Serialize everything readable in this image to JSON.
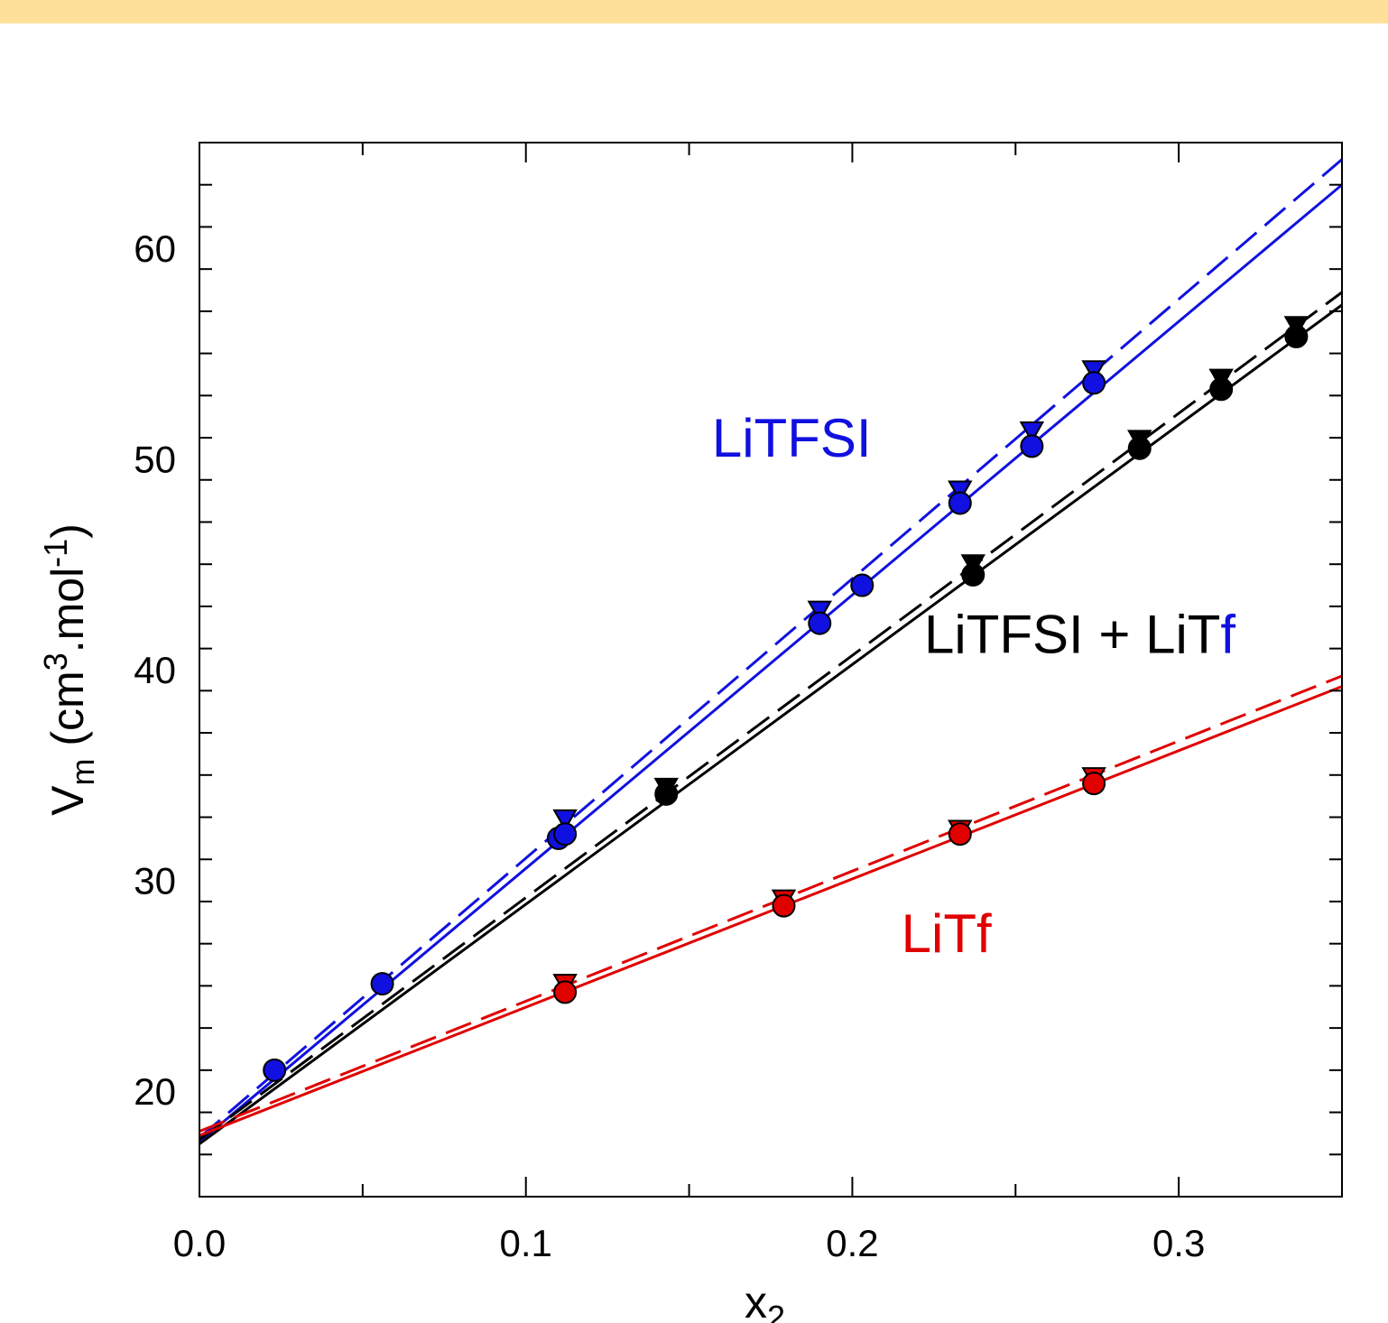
{
  "chart_data": {
    "type": "scatter",
    "xlabel": "x",
    "xlabel_sub": "2",
    "ylabel": "V",
    "ylabel_sub": "m",
    "ylabel_rest": " (cm",
    "ylabel_sup1": "3",
    "ylabel_mid": ".mol",
    "ylabel_sup2": "-1",
    "ylabel_end": ")",
    "xlim": [
      0.0,
      0.35
    ],
    "ylim": [
      15,
      65
    ],
    "x_ticks": [
      0.0,
      0.1,
      0.2,
      0.3
    ],
    "x_tick_labels": [
      "0.0",
      "0.1",
      "0.2",
      "0.3"
    ],
    "y_ticks": [
      20,
      30,
      40,
      50,
      60
    ],
    "y_tick_labels": [
      "20",
      "30",
      "40",
      "50",
      "60"
    ],
    "grid": false,
    "annotations": [
      {
        "id": "litfsi",
        "text": "LiTFSI",
        "color": "#1010e0",
        "x": 0.157,
        "y": 50.1
      },
      {
        "id": "mix",
        "parts": [
          {
            "text": "LiTFSI + LiT",
            "color": "#000000"
          },
          {
            "text": "f",
            "color": "#1010e0"
          }
        ],
        "x": 0.222,
        "y": 40.8
      },
      {
        "id": "litf",
        "text": "LiTf",
        "color": "#e00000",
        "x": 0.215,
        "y": 26.6
      }
    ],
    "series": [
      {
        "color": "#1010e0",
        "circles": [
          [
            0.023,
            21.0
          ],
          [
            0.056,
            25.1
          ],
          [
            0.11,
            32.0
          ],
          [
            0.112,
            32.2
          ],
          [
            0.19,
            42.2
          ],
          [
            0.203,
            44.0
          ],
          [
            0.233,
            47.9
          ],
          [
            0.255,
            50.6
          ],
          [
            0.274,
            53.6
          ]
        ],
        "triangles": [
          [
            0.112,
            32.9
          ],
          [
            0.19,
            42.8
          ],
          [
            0.233,
            48.5
          ],
          [
            0.255,
            51.3
          ],
          [
            0.274,
            54.2
          ]
        ],
        "solid_fit": [
          [
            0.0,
            17.6
          ],
          [
            0.35,
            63.0
          ]
        ],
        "dashed_fit": [
          [
            0.0,
            17.8
          ],
          [
            0.35,
            64.2
          ]
        ]
      },
      {
        "color": "#000000",
        "circles": [
          [
            0.143,
            34.1
          ],
          [
            0.237,
            44.5
          ],
          [
            0.288,
            50.5
          ],
          [
            0.313,
            53.3
          ],
          [
            0.336,
            55.8
          ]
        ],
        "triangles": [
          [
            0.143,
            34.4
          ],
          [
            0.237,
            45.0
          ],
          [
            0.288,
            50.9
          ],
          [
            0.313,
            53.8
          ],
          [
            0.336,
            56.3
          ]
        ],
        "solid_fit": [
          [
            0.0,
            17.5
          ],
          [
            0.35,
            57.3
          ]
        ],
        "dashed_fit": [
          [
            0.0,
            17.7
          ],
          [
            0.35,
            57.9
          ]
        ]
      },
      {
        "color": "#e00000",
        "circles": [
          [
            0.112,
            24.7
          ],
          [
            0.179,
            28.8
          ],
          [
            0.233,
            32.2
          ],
          [
            0.274,
            34.6
          ]
        ],
        "triangles": [
          [
            0.112,
            25.1
          ],
          [
            0.179,
            29.1
          ],
          [
            0.233,
            32.4
          ],
          [
            0.274,
            34.9
          ]
        ],
        "solid_fit": [
          [
            0.0,
            17.9
          ],
          [
            0.35,
            39.2
          ]
        ],
        "dashed_fit": [
          [
            0.0,
            18.1
          ],
          [
            0.35,
            39.7
          ]
        ]
      }
    ]
  }
}
